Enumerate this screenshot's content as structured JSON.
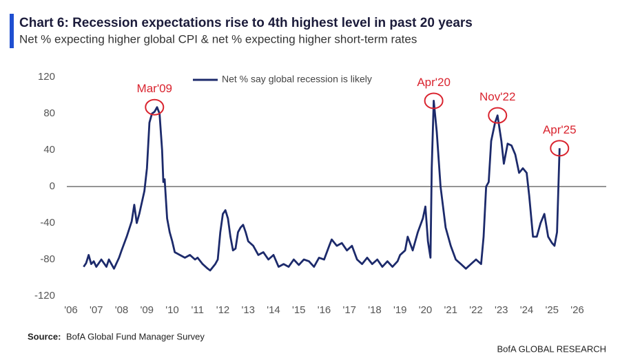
{
  "chart_data": {
    "type": "line",
    "title": "Chart 6: Recession expectations rise to 4th highest level in past 20 years",
    "subtitle": "Net % expecting higher global CPI & net % expecting higher short-term rates",
    "source_label": "Source:",
    "source": "BofA Global Fund Manager Survey",
    "footer": "BofA GLOBAL RESEARCH",
    "xlim": [
      2006,
      2026
    ],
    "xticks": [
      {
        "value": 2006,
        "label": "'06"
      },
      {
        "value": 2007,
        "label": "'07"
      },
      {
        "value": 2008,
        "label": "'08"
      },
      {
        "value": 2009,
        "label": "'09"
      },
      {
        "value": 2010,
        "label": "'10"
      },
      {
        "value": 2011,
        "label": "'11"
      },
      {
        "value": 2012,
        "label": "'12"
      },
      {
        "value": 2013,
        "label": "'13"
      },
      {
        "value": 2014,
        "label": "'14"
      },
      {
        "value": 2015,
        "label": "'15"
      },
      {
        "value": 2016,
        "label": "'16"
      },
      {
        "value": 2017,
        "label": "'17"
      },
      {
        "value": 2018,
        "label": "'18"
      },
      {
        "value": 2019,
        "label": "'19"
      },
      {
        "value": 2020,
        "label": "'20"
      },
      {
        "value": 2021,
        "label": "'21"
      },
      {
        "value": 2022,
        "label": "'22"
      },
      {
        "value": 2023,
        "label": "'23"
      },
      {
        "value": 2024,
        "label": "'24"
      },
      {
        "value": 2025,
        "label": "'25"
      },
      {
        "value": 2026,
        "label": "'26"
      }
    ],
    "ylim": [
      -120,
      120
    ],
    "yticks": [
      -120,
      -80,
      -40,
      0,
      40,
      80,
      120
    ],
    "zero_line": true,
    "legend": "top",
    "x": [
      2006.5,
      2006.6,
      2006.7,
      2006.8,
      2006.9,
      2007.0,
      2007.2,
      2007.4,
      2007.5,
      2007.7,
      2007.9,
      2008.0,
      2008.2,
      2008.4,
      2008.5,
      2008.6,
      2008.7,
      2008.9,
      2009.0,
      2009.1,
      2009.2,
      2009.3,
      2009.4,
      2009.5,
      2009.6,
      2009.65,
      2009.7,
      2009.8,
      2009.9,
      2010.0,
      2010.1,
      2010.3,
      2010.5,
      2010.7,
      2010.9,
      2011.0,
      2011.2,
      2011.4,
      2011.5,
      2011.7,
      2011.8,
      2011.9,
      2012.0,
      2012.1,
      2012.2,
      2012.3,
      2012.4,
      2012.5,
      2012.6,
      2012.7,
      2012.8,
      2012.9,
      2013.0,
      2013.2,
      2013.4,
      2013.6,
      2013.8,
      2014.0,
      2014.2,
      2014.4,
      2014.6,
      2014.8,
      2015.0,
      2015.2,
      2015.4,
      2015.6,
      2015.8,
      2016.0,
      2016.2,
      2016.3,
      2016.5,
      2016.7,
      2016.9,
      2017.1,
      2017.3,
      2017.5,
      2017.7,
      2017.9,
      2018.1,
      2018.3,
      2018.5,
      2018.7,
      2018.9,
      2019.0,
      2019.2,
      2019.3,
      2019.5,
      2019.7,
      2019.9,
      2020.0,
      2020.1,
      2020.2,
      2020.25,
      2020.33,
      2020.45,
      2020.6,
      2020.8,
      2021.0,
      2021.2,
      2021.4,
      2021.6,
      2021.8,
      2022.0,
      2022.2,
      2022.3,
      2022.4,
      2022.5,
      2022.6,
      2022.75,
      2022.85,
      2023.0,
      2023.1,
      2023.25,
      2023.4,
      2023.55,
      2023.7,
      2023.85,
      2024.0,
      2024.1,
      2024.25,
      2024.4,
      2024.55,
      2024.7,
      2024.85,
      2025.0,
      2025.1,
      2025.2,
      2025.3
    ],
    "series": [
      {
        "name": "Net % say global recession is likely",
        "color": "#1c2a6b",
        "values": [
          -88,
          -84,
          -75,
          -85,
          -82,
          -88,
          -80,
          -88,
          -80,
          -90,
          -78,
          -70,
          -55,
          -38,
          -20,
          -40,
          -30,
          -5,
          20,
          70,
          80,
          82,
          87,
          80,
          40,
          5,
          8,
          -35,
          -50,
          -60,
          -72,
          -75,
          -78,
          -75,
          -80,
          -78,
          -85,
          -90,
          -92,
          -85,
          -80,
          -50,
          -30,
          -26,
          -35,
          -55,
          -70,
          -68,
          -50,
          -45,
          -42,
          -50,
          -60,
          -65,
          -75,
          -72,
          -80,
          -75,
          -88,
          -85,
          -88,
          -80,
          -86,
          -80,
          -82,
          -88,
          -78,
          -80,
          -65,
          -58,
          -65,
          -62,
          -70,
          -65,
          -80,
          -85,
          -78,
          -85,
          -80,
          -88,
          -82,
          -88,
          -82,
          -75,
          -70,
          -55,
          -70,
          -50,
          -35,
          -22,
          -60,
          -78,
          20,
          94,
          60,
          0,
          -45,
          -65,
          -80,
          -85,
          -90,
          -85,
          -80,
          -85,
          -55,
          0,
          5,
          50,
          70,
          78,
          50,
          25,
          47,
          45,
          35,
          15,
          20,
          15,
          -10,
          -55,
          -55,
          -40,
          -30,
          -55,
          -62,
          -65,
          -50,
          42
        ]
      }
    ],
    "annotations": [
      {
        "text": "Mar'09",
        "x": 2009.3,
        "y": 87
      },
      {
        "text": "Apr'20",
        "x": 2020.33,
        "y": 94
      },
      {
        "text": "Nov'22",
        "x": 2022.85,
        "y": 78
      },
      {
        "text": "Apr'25",
        "x": 2025.3,
        "y": 42
      }
    ]
  }
}
